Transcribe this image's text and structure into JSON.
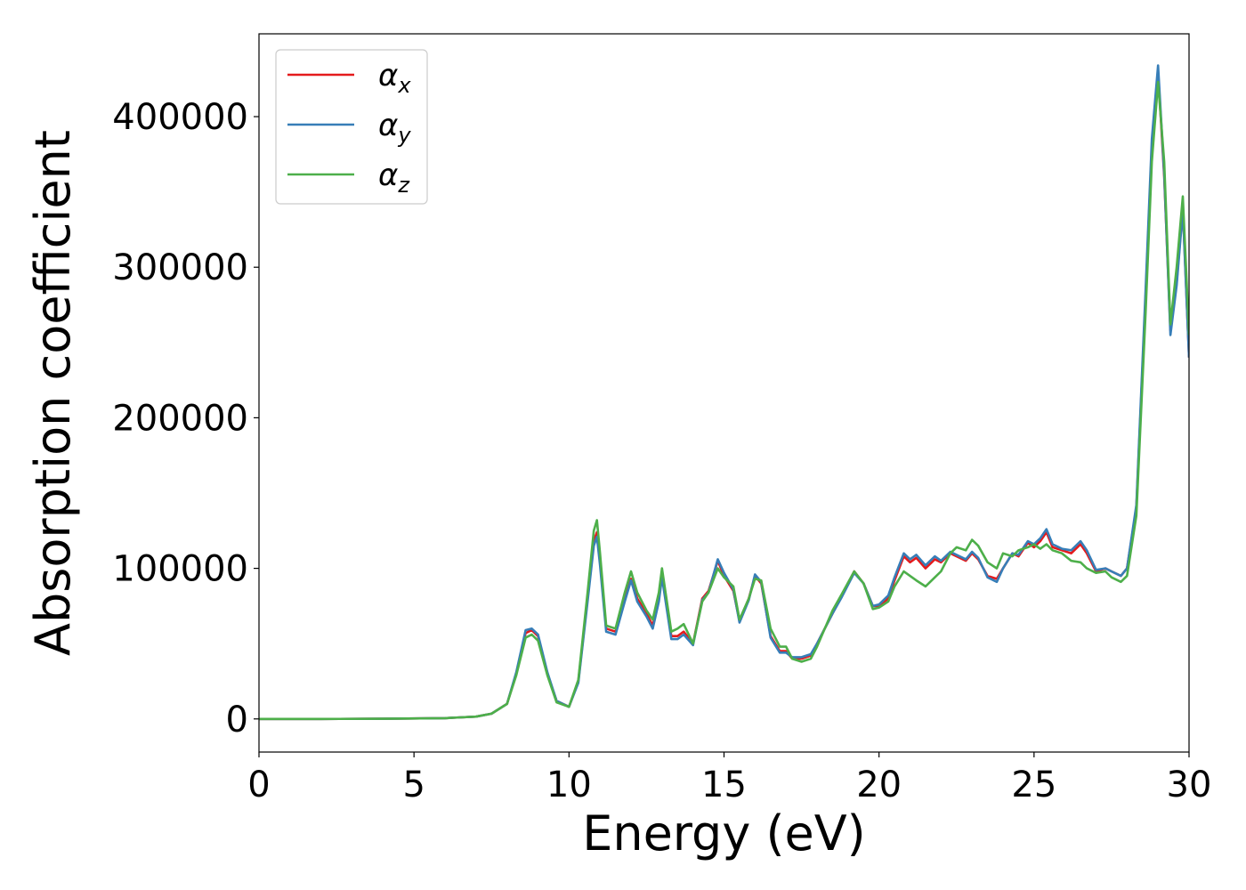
{
  "chart_data": {
    "type": "line",
    "xlabel": "Energy (eV)",
    "ylabel": "Absorption coefficient",
    "xlim": [
      0,
      30
    ],
    "ylim": [
      -22000,
      455000
    ],
    "xticks": [
      0,
      5,
      10,
      15,
      20,
      25,
      30
    ],
    "yticks": [
      0,
      100000,
      200000,
      300000,
      400000
    ],
    "grid": false,
    "legend_position": "top-left",
    "series": [
      {
        "name": "α",
        "subscript": "x",
        "color": "#e41a1c",
        "x": [
          0,
          2,
          4,
          6,
          7,
          7.5,
          8,
          8.3,
          8.6,
          8.8,
          9.0,
          9.3,
          9.6,
          10.0,
          10.3,
          10.6,
          10.8,
          10.9,
          11.0,
          11.2,
          11.5,
          11.8,
          12.0,
          12.2,
          12.5,
          12.7,
          12.9,
          13.0,
          13.3,
          13.5,
          13.7,
          14.0,
          14.3,
          14.5,
          14.8,
          15.0,
          15.3,
          15.5,
          15.8,
          16.0,
          16.2,
          16.5,
          16.8,
          17.0,
          17.2,
          17.5,
          17.8,
          18.0,
          18.5,
          18.8,
          19.2,
          19.5,
          19.8,
          20.0,
          20.3,
          20.5,
          20.8,
          21.0,
          21.2,
          21.5,
          21.8,
          22.0,
          22.3,
          22.5,
          22.8,
          23.0,
          23.2,
          23.5,
          23.8,
          24.0,
          24.3,
          24.5,
          24.8,
          25.0,
          25.2,
          25.4,
          25.6,
          25.9,
          26.2,
          26.5,
          26.7,
          27.0,
          27.3,
          27.5,
          27.8,
          28.0,
          28.3,
          28.6,
          28.8,
          29.0,
          29.2,
          29.4,
          29.6,
          29.8,
          30.0
        ],
        "y": [
          0,
          0,
          100,
          500,
          1500,
          3500,
          10000,
          30000,
          57000,
          59000,
          55000,
          30000,
          12000,
          8000,
          25000,
          80000,
          118000,
          124000,
          105000,
          60000,
          58000,
          80000,
          93000,
          80000,
          70000,
          62000,
          80000,
          96000,
          55000,
          55000,
          58000,
          50000,
          80000,
          85000,
          105000,
          95000,
          85000,
          65000,
          80000,
          95000,
          90000,
          55000,
          45000,
          45000,
          40000,
          40000,
          42000,
          50000,
          70000,
          82000,
          98000,
          90000,
          75000,
          75000,
          80000,
          92000,
          108000,
          104000,
          107000,
          100000,
          106000,
          104000,
          110000,
          108000,
          105000,
          110000,
          106000,
          95000,
          93000,
          100000,
          110000,
          108000,
          117000,
          114000,
          118000,
          124000,
          114000,
          112000,
          110000,
          116000,
          110000,
          98000,
          100000,
          98000,
          95000,
          100000,
          140000,
          280000,
          380000,
          430000,
          360000,
          258000,
          290000,
          340000,
          240000
        ]
      },
      {
        "name": "α",
        "subscript": "y",
        "color": "#377eb8",
        "x": [
          0,
          2,
          4,
          6,
          7,
          7.5,
          8,
          8.3,
          8.6,
          8.8,
          9.0,
          9.3,
          9.6,
          10.0,
          10.3,
          10.6,
          10.8,
          10.9,
          11.0,
          11.2,
          11.5,
          11.8,
          12.0,
          12.2,
          12.5,
          12.7,
          12.9,
          13.0,
          13.3,
          13.5,
          13.7,
          14.0,
          14.3,
          14.5,
          14.8,
          15.0,
          15.3,
          15.5,
          15.8,
          16.0,
          16.2,
          16.5,
          16.8,
          17.0,
          17.2,
          17.5,
          17.8,
          18.0,
          18.5,
          18.8,
          19.2,
          19.5,
          19.8,
          20.0,
          20.3,
          20.5,
          20.8,
          21.0,
          21.2,
          21.5,
          21.8,
          22.0,
          22.3,
          22.5,
          22.8,
          23.0,
          23.2,
          23.5,
          23.8,
          24.0,
          24.3,
          24.5,
          24.8,
          25.0,
          25.2,
          25.4,
          25.6,
          25.9,
          26.2,
          26.5,
          26.7,
          27.0,
          27.3,
          27.5,
          27.8,
          28.0,
          28.3,
          28.6,
          28.8,
          29.0,
          29.2,
          29.4,
          29.6,
          29.8,
          30.0
        ],
        "y": [
          0,
          0,
          100,
          500,
          1500,
          3500,
          10000,
          31000,
          59000,
          60000,
          56000,
          31000,
          12000,
          8000,
          24000,
          78000,
          115000,
          121000,
          102000,
          58000,
          56000,
          78000,
          92000,
          78000,
          68000,
          60000,
          78000,
          94000,
          53000,
          53000,
          56000,
          49000,
          79000,
          84000,
          106000,
          97000,
          86000,
          64000,
          79000,
          96000,
          91000,
          54000,
          44000,
          44000,
          41000,
          41000,
          43000,
          50000,
          70000,
          81000,
          97000,
          90000,
          75000,
          76000,
          82000,
          94000,
          110000,
          106000,
          109000,
          102000,
          108000,
          105000,
          111000,
          109000,
          106000,
          111000,
          107000,
          94000,
          91000,
          100000,
          110000,
          109000,
          118000,
          116000,
          120000,
          126000,
          116000,
          113000,
          112000,
          118000,
          112000,
          99000,
          100000,
          98000,
          95000,
          100000,
          142000,
          285000,
          385000,
          434000,
          362000,
          255000,
          288000,
          338000,
          240000
        ]
      },
      {
        "name": "α",
        "subscript": "z",
        "color": "#4daf4a",
        "x": [
          0,
          2,
          4,
          6,
          7,
          7.5,
          8,
          8.3,
          8.6,
          8.8,
          9.0,
          9.3,
          9.6,
          10.0,
          10.3,
          10.6,
          10.8,
          10.9,
          11.0,
          11.2,
          11.5,
          11.8,
          12.0,
          12.2,
          12.5,
          12.7,
          12.9,
          13.0,
          13.3,
          13.5,
          13.7,
          14.0,
          14.3,
          14.5,
          14.8,
          15.0,
          15.3,
          15.5,
          15.8,
          16.0,
          16.2,
          16.5,
          16.8,
          17.0,
          17.2,
          17.5,
          17.8,
          18.0,
          18.5,
          18.8,
          19.2,
          19.5,
          19.8,
          20.0,
          20.3,
          20.5,
          20.8,
          21.0,
          21.2,
          21.5,
          21.8,
          22.0,
          22.3,
          22.5,
          22.8,
          23.0,
          23.2,
          23.5,
          23.8,
          24.0,
          24.3,
          24.5,
          24.8,
          25.0,
          25.2,
          25.4,
          25.6,
          25.9,
          26.2,
          26.5,
          26.7,
          27.0,
          27.3,
          27.5,
          27.8,
          28.0,
          28.3,
          28.6,
          28.8,
          29.0,
          29.2,
          29.4,
          29.6,
          29.8,
          30.0
        ],
        "y": [
          0,
          0,
          100,
          500,
          1500,
          3500,
          10000,
          29000,
          54000,
          56000,
          52000,
          29000,
          11000,
          8000,
          26000,
          84000,
          125000,
          132000,
          110000,
          62000,
          60000,
          84000,
          98000,
          84000,
          72000,
          66000,
          84000,
          100000,
          58000,
          60000,
          63000,
          50000,
          78000,
          84000,
          100000,
          94000,
          88000,
          66000,
          80000,
          93000,
          92000,
          60000,
          48000,
          48000,
          40000,
          38000,
          40000,
          48000,
          72000,
          83000,
          98000,
          90000,
          73000,
          74000,
          78000,
          88000,
          98000,
          95000,
          92000,
          88000,
          94000,
          98000,
          110000,
          114000,
          112000,
          119000,
          115000,
          104000,
          100000,
          110000,
          108000,
          112000,
          114000,
          116000,
          113000,
          116000,
          112000,
          110000,
          105000,
          104000,
          100000,
          97000,
          98000,
          94000,
          91000,
          95000,
          135000,
          270000,
          370000,
          423000,
          370000,
          262000,
          300000,
          347000,
          255000
        ]
      }
    ]
  }
}
